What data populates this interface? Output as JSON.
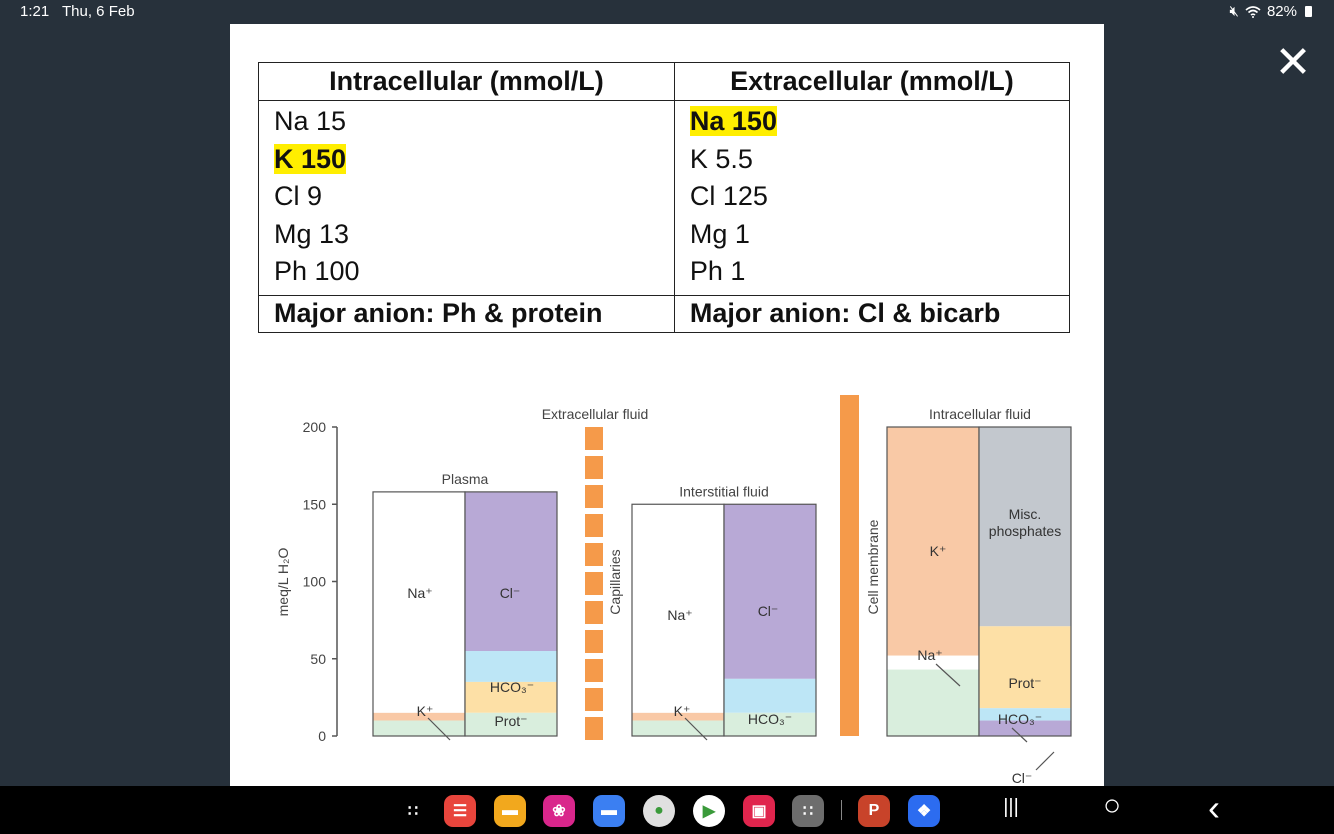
{
  "status_bar": {
    "time": "1:21",
    "date": "Thu, 6 Feb",
    "battery": "82%"
  },
  "table": {
    "headers": [
      "Intracellular (mmol/L)",
      "Extracellular (mmol/L)"
    ],
    "intracellular": [
      "Na 15",
      "K 150",
      "Cl 9",
      "Mg 13",
      "Ph 100"
    ],
    "extracellular": [
      "Na 150",
      "K 5.5",
      "Cl 125",
      "Mg 1",
      "Ph 1"
    ],
    "major_anion": [
      "Major anion: Ph & protein",
      "Major anion: Cl & bicarb"
    ],
    "highlight_color": "#ffee00"
  },
  "chart_data": {
    "type": "bar",
    "ylabel": "meq/L H₂O",
    "ylim": [
      0,
      200
    ],
    "yticks": [
      0,
      50,
      100,
      150,
      200
    ],
    "labels": {
      "extracellular": "Extracellular fluid",
      "intracellular": "Intracellular fluid",
      "capillaries": "Capillaries",
      "cell_membrane": "Cell membrane"
    },
    "compartments": [
      {
        "name": "Plasma",
        "cations": [
          {
            "label": "Na⁺",
            "from": 15,
            "to": 158,
            "color": "#ffffff"
          },
          {
            "label": "K⁺",
            "from": 10,
            "to": 15,
            "color": "#f9c9a6"
          },
          {
            "label": "",
            "from": 0,
            "to": 10,
            "color": "#d9eedd"
          }
        ],
        "anions": [
          {
            "label": "Cl⁻",
            "from": 55,
            "to": 158,
            "color": "#b8a9d6"
          },
          {
            "label": "HCO₃⁻",
            "from": 35,
            "to": 55,
            "color": "#bde6f6"
          },
          {
            "label": "Prot⁻",
            "from": 15,
            "to": 35,
            "color": "#fde0a6"
          },
          {
            "label": "",
            "from": 0,
            "to": 15,
            "color": "#d9eedd"
          }
        ]
      },
      {
        "name": "Interstitial fluid",
        "cations": [
          {
            "label": "Na⁺",
            "from": 15,
            "to": 150,
            "color": "#ffffff"
          },
          {
            "label": "K⁺",
            "from": 10,
            "to": 15,
            "color": "#f9c9a6"
          },
          {
            "label": "",
            "from": 0,
            "to": 10,
            "color": "#d9eedd"
          }
        ],
        "anions": [
          {
            "label": "Cl⁻",
            "from": 37,
            "to": 150,
            "color": "#b8a9d6"
          },
          {
            "label": "HCO₃⁻",
            "from": 15,
            "to": 37,
            "color": "#bde6f6"
          },
          {
            "label": "",
            "from": 0,
            "to": 15,
            "color": "#d9eedd"
          }
        ]
      },
      {
        "name": "",
        "cations": [
          {
            "label": "K⁺",
            "from": 52,
            "to": 200,
            "color": "#f9c9a6"
          },
          {
            "label": "Na⁺",
            "from": 43,
            "to": 52,
            "color": "#ffffff"
          },
          {
            "label": "",
            "from": 0,
            "to": 43,
            "color": "#d9eedd"
          }
        ],
        "anions": [
          {
            "label": "Misc.",
            "label2": "phosphates",
            "from": 71,
            "to": 200,
            "color": "#c3c8ce"
          },
          {
            "label": "Prot⁻",
            "from": 18,
            "to": 71,
            "color": "#fde0a6"
          },
          {
            "label": "HCO₃⁻",
            "from": 10,
            "to": 18,
            "color": "#bde6f6"
          },
          {
            "label": "Cl⁻",
            "from": 0,
            "to": 10,
            "color": "#b8a9d6"
          }
        ]
      }
    ]
  },
  "apps": [
    {
      "name": "app-drawer",
      "glyph": "∷",
      "color": "#000000"
    },
    {
      "name": "notes",
      "glyph": "☰",
      "color": "#e8453c"
    },
    {
      "name": "files",
      "glyph": "▬",
      "color": "#f2a81d"
    },
    {
      "name": "flower",
      "glyph": "❀",
      "color": "#d9268b"
    },
    {
      "name": "messages",
      "glyph": "▬",
      "color": "#3b7ff2"
    },
    {
      "name": "chrome",
      "glyph": "●",
      "color": "#e0e0e0"
    },
    {
      "name": "play-store",
      "glyph": "▶",
      "color": "#ffffff"
    },
    {
      "name": "camera",
      "glyph": "▣",
      "color": "#e0254d"
    },
    {
      "name": "apps-grid",
      "glyph": "∷",
      "color": "#6d6d6d"
    },
    {
      "name": "powerpoint",
      "glyph": "P",
      "color": "#c8432a"
    },
    {
      "name": "dropbox",
      "glyph": "❖",
      "color": "#2c6cf0"
    }
  ],
  "nav": {
    "recents": "|||",
    "home": "○",
    "back": "‹"
  }
}
